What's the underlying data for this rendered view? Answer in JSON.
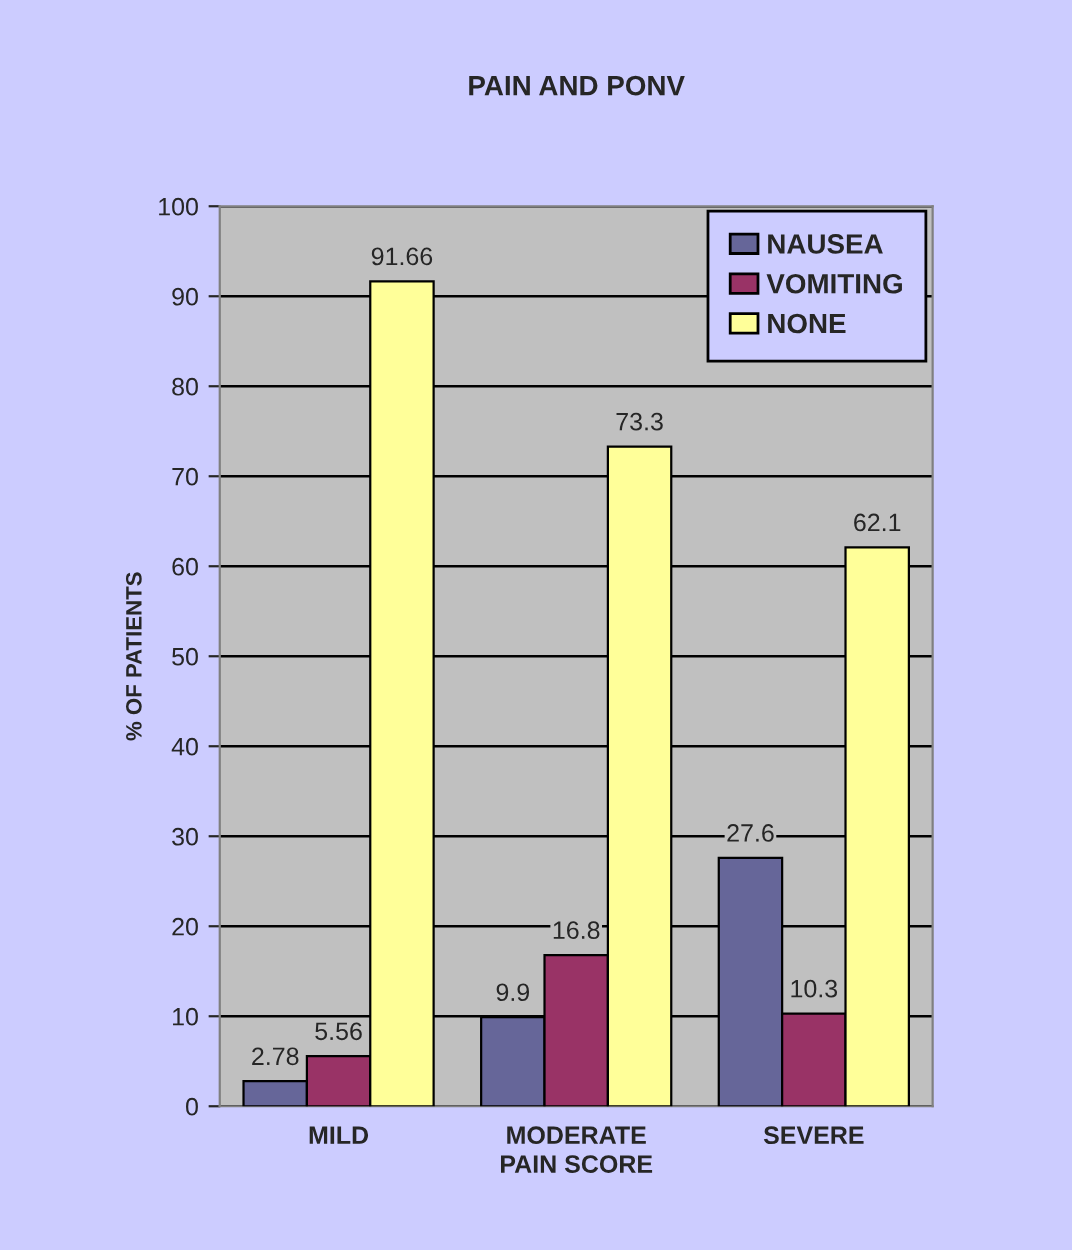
{
  "chart_data": {
    "type": "bar",
    "title": "PAIN AND PONV",
    "xlabel": "PAIN SCORE",
    "ylabel": "% OF PATIENTS",
    "categories": [
      "MILD",
      "MODERATE",
      "SEVERE"
    ],
    "series": [
      {
        "name": "NAUSEA",
        "color": "#666699",
        "values": [
          2.78,
          9.9,
          27.6
        ]
      },
      {
        "name": "VOMITING",
        "color": "#993366",
        "values": [
          5.56,
          16.8,
          10.3
        ]
      },
      {
        "name": "NONE",
        "color": "#ffff99",
        "values": [
          91.66,
          73.3,
          62.1
        ]
      }
    ],
    "ylim": [
      0,
      100
    ],
    "yticks": [
      0,
      10,
      20,
      30,
      40,
      50,
      60,
      70,
      80,
      90,
      100
    ],
    "grid": "y",
    "legend": "top right",
    "data_labels": true
  }
}
